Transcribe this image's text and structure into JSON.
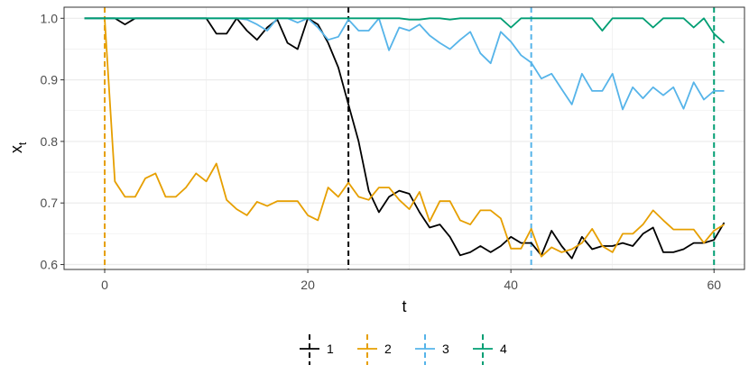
{
  "chart_data": {
    "type": "line",
    "title": "",
    "xlabel": "t",
    "ylabel_main": "x",
    "ylabel_sub": "t",
    "xlim": [
      -4,
      63
    ],
    "ylim": [
      0.592,
      1.018
    ],
    "x_ticks": [
      0,
      20,
      40,
      60
    ],
    "x_tick_labels": [
      "0",
      "20",
      "40",
      "60"
    ],
    "x_minor_ticks": [
      10,
      30,
      50
    ],
    "y_ticks": [
      0.6,
      0.7,
      0.8,
      0.9,
      1.0
    ],
    "y_tick_labels": [
      "0.6",
      "0.7",
      "0.8",
      "0.9",
      "1.0"
    ],
    "y_minor_ticks": [
      0.65,
      0.75,
      0.85,
      0.95
    ],
    "grid": true,
    "legend_position": "bottom",
    "series": [
      {
        "name": "1",
        "color": "#000000",
        "changepoint": 24,
        "x": [
          -2,
          -1,
          0,
          1,
          2,
          3,
          4,
          5,
          6,
          7,
          8,
          9,
          10,
          11,
          12,
          13,
          14,
          15,
          16,
          17,
          18,
          19,
          20,
          21,
          22,
          23,
          24,
          25,
          26,
          27,
          28,
          29,
          30,
          31,
          32,
          33,
          34,
          35,
          36,
          37,
          38,
          39,
          40,
          41,
          42,
          43,
          44,
          45,
          46,
          47,
          48,
          49,
          50,
          51,
          52,
          53,
          54,
          55,
          56,
          57,
          58,
          59,
          60,
          61
        ],
        "y": [
          1.0,
          1.0,
          1.0,
          1.0,
          0.99,
          1.0,
          1.0,
          1.0,
          1.0,
          1.0,
          1.0,
          1.0,
          1.0,
          0.975,
          0.975,
          1.0,
          0.98,
          0.965,
          0.985,
          0.998,
          0.96,
          0.95,
          1.0,
          0.99,
          0.96,
          0.92,
          0.86,
          0.8,
          0.72,
          0.685,
          0.71,
          0.72,
          0.715,
          0.685,
          0.66,
          0.665,
          0.645,
          0.615,
          0.62,
          0.63,
          0.62,
          0.63,
          0.645,
          0.635,
          0.635,
          0.615,
          0.655,
          0.63,
          0.61,
          0.645,
          0.625,
          0.63,
          0.63,
          0.635,
          0.63,
          0.65,
          0.66,
          0.62,
          0.62,
          0.625,
          0.635,
          0.635,
          0.64,
          0.668
        ]
      },
      {
        "name": "2",
        "color": "#E69F00",
        "changepoint": 0,
        "x": [
          0,
          1,
          2,
          3,
          4,
          5,
          6,
          7,
          8,
          9,
          10,
          11,
          12,
          13,
          14,
          15,
          16,
          17,
          18,
          19,
          20,
          21,
          22,
          23,
          24,
          25,
          26,
          27,
          28,
          29,
          30,
          31,
          32,
          33,
          34,
          35,
          36,
          37,
          38,
          39,
          40,
          41,
          42,
          43,
          44,
          45,
          46,
          47,
          48,
          49,
          50,
          51,
          52,
          53,
          54,
          55,
          56,
          57,
          58,
          59,
          60,
          61
        ],
        "y": [
          1.0,
          0.735,
          0.71,
          0.71,
          0.74,
          0.748,
          0.71,
          0.71,
          0.725,
          0.748,
          0.735,
          0.764,
          0.705,
          0.69,
          0.68,
          0.702,
          0.695,
          0.703,
          0.703,
          0.703,
          0.68,
          0.672,
          0.725,
          0.71,
          0.733,
          0.71,
          0.705,
          0.725,
          0.725,
          0.705,
          0.69,
          0.718,
          0.67,
          0.703,
          0.703,
          0.672,
          0.665,
          0.688,
          0.688,
          0.675,
          0.626,
          0.626,
          0.658,
          0.613,
          0.628,
          0.62,
          0.625,
          0.635,
          0.658,
          0.63,
          0.62,
          0.65,
          0.65,
          0.665,
          0.688,
          0.672,
          0.657,
          0.657,
          0.657,
          0.635,
          0.655,
          0.665
        ]
      },
      {
        "name": "3",
        "color": "#56B4E9",
        "changepoint": 42,
        "x": [
          -2,
          -1,
          0,
          1,
          2,
          3,
          4,
          5,
          6,
          7,
          8,
          9,
          10,
          11,
          12,
          13,
          14,
          15,
          16,
          17,
          18,
          19,
          20,
          21,
          22,
          23,
          24,
          25,
          26,
          27,
          28,
          29,
          30,
          31,
          32,
          33,
          34,
          35,
          36,
          37,
          38,
          39,
          40,
          41,
          42,
          43,
          44,
          45,
          46,
          47,
          48,
          49,
          50,
          51,
          52,
          53,
          54,
          55,
          56,
          57,
          58,
          59,
          60,
          61
        ],
        "y": [
          1.0,
          1.0,
          1.0,
          1.0,
          1.0,
          1.0,
          1.0,
          1.0,
          1.0,
          1.0,
          1.0,
          1.0,
          1.0,
          1.0,
          1.0,
          1.0,
          0.998,
          0.99,
          0.98,
          1.0,
          1.0,
          0.993,
          1.0,
          0.985,
          0.965,
          0.97,
          0.998,
          0.98,
          0.98,
          1.0,
          0.948,
          0.985,
          0.98,
          0.99,
          0.972,
          0.96,
          0.95,
          0.965,
          0.978,
          0.943,
          0.927,
          0.978,
          0.962,
          0.94,
          0.928,
          0.902,
          0.91,
          0.885,
          0.86,
          0.91,
          0.882,
          0.882,
          0.91,
          0.852,
          0.888,
          0.87,
          0.888,
          0.875,
          0.888,
          0.853,
          0.896,
          0.868,
          0.882,
          0.882
        ]
      },
      {
        "name": "4",
        "color": "#009E73",
        "changepoint": 60,
        "x": [
          -2,
          -1,
          0,
          1,
          2,
          3,
          4,
          5,
          6,
          7,
          8,
          9,
          10,
          11,
          12,
          13,
          14,
          15,
          16,
          17,
          18,
          19,
          20,
          21,
          22,
          23,
          24,
          25,
          26,
          27,
          28,
          29,
          30,
          31,
          32,
          33,
          34,
          35,
          36,
          37,
          38,
          39,
          40,
          41,
          42,
          43,
          44,
          45,
          46,
          47,
          48,
          49,
          50,
          51,
          52,
          53,
          54,
          55,
          56,
          57,
          58,
          59,
          60,
          61
        ],
        "y": [
          1.0,
          1.0,
          1.0,
          1.0,
          1.0,
          1.0,
          1.0,
          1.0,
          1.0,
          1.0,
          1.0,
          1.0,
          1.0,
          1.0,
          1.0,
          1.0,
          1.0,
          1.0,
          1.0,
          1.0,
          1.0,
          1.0,
          1.0,
          1.0,
          1.0,
          1.0,
          1.0,
          1.0,
          1.0,
          1.0,
          1.0,
          1.0,
          0.998,
          0.998,
          1.0,
          1.0,
          0.998,
          1.0,
          1.0,
          1.0,
          1.0,
          1.0,
          0.985,
          1.0,
          1.0,
          1.0,
          1.0,
          1.0,
          1.0,
          1.0,
          1.0,
          0.98,
          1.0,
          1.0,
          1.0,
          1.0,
          0.985,
          1.0,
          1.0,
          1.0,
          0.985,
          1.0,
          0.975,
          0.96
        ]
      }
    ]
  }
}
